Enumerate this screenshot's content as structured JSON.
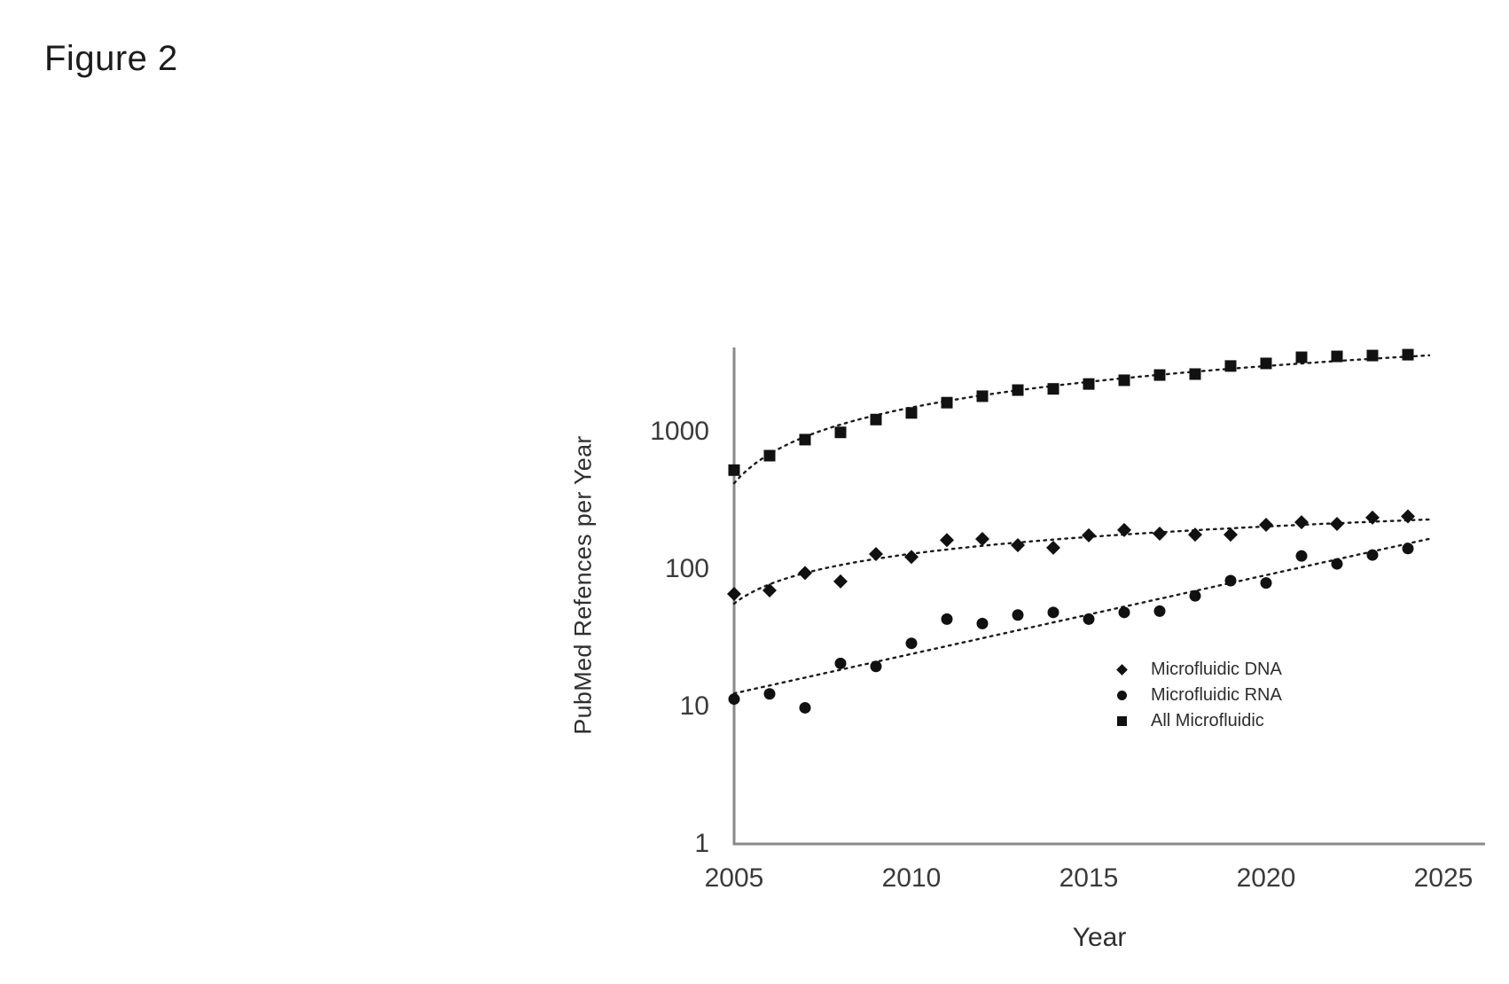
{
  "figure_label": "Figure 2",
  "chart_data": {
    "type": "scatter",
    "title": "",
    "xlabel": "Year",
    "ylabel": "PubMed Refences per Year",
    "y_scale": "log",
    "grid": false,
    "legend_position": "inside right",
    "marker_color": "#111111",
    "axis_color": "#8a8a8a",
    "tick_label_color": "#3a3a3a",
    "x_ticks": [
      2005,
      2010,
      2015,
      2020,
      2025
    ],
    "y_ticks": [
      1,
      10,
      100,
      1000
    ],
    "xlim": [
      2005,
      2026
    ],
    "ylim": [
      1,
      4200
    ],
    "years": [
      2005,
      2006,
      2007,
      2008,
      2009,
      2010,
      2011,
      2012,
      2013,
      2014,
      2015,
      2016,
      2017,
      2018,
      2019,
      2020,
      2021,
      2022,
      2023,
      2024
    ],
    "series": [
      {
        "name": "Microfluidic DNA",
        "marker": "diamond",
        "trendline": "power",
        "values": [
          64,
          68,
          91,
          79,
          125,
          119,
          158,
          161,
          145,
          139,
          171,
          187,
          176,
          173,
          173,
          204,
          213,
          207,
          230,
          235
        ]
      },
      {
        "name": "Microfluidic RNA",
        "marker": "circle",
        "trendline": "exponential",
        "values": [
          11,
          12,
          9.5,
          20,
          19,
          28,
          42,
          39,
          45,
          47,
          42,
          47,
          48,
          62,
          80,
          77,
          121,
          106,
          123,
          137
        ]
      },
      {
        "name": "All Microfluidic",
        "marker": "square",
        "trendline": "power",
        "values": [
          510,
          650,
          850,
          960,
          1190,
          1330,
          1580,
          1760,
          1950,
          1990,
          2160,
          2300,
          2510,
          2550,
          2920,
          3050,
          3380,
          3430,
          3480,
          3530
        ]
      }
    ]
  }
}
